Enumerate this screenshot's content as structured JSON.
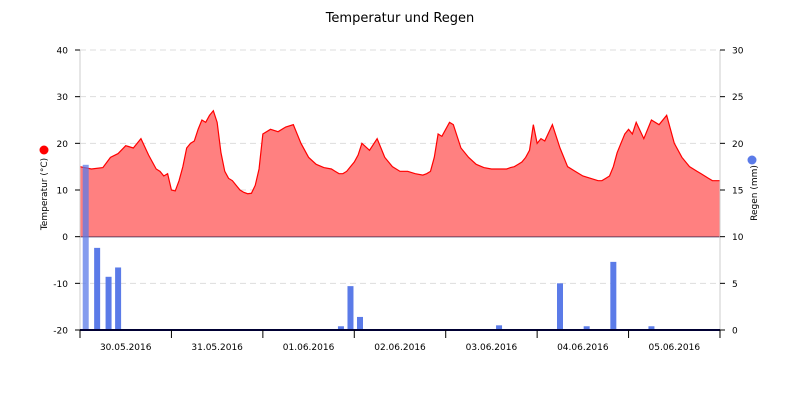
{
  "chart_data": {
    "type": "line+bar",
    "title": "Temperatur und Regen",
    "colors": {
      "temperature": "#ff0000",
      "temperature_fill": "#ff8080",
      "rain": "#5b7be8",
      "axis": "#000033",
      "grid": "#dddddd"
    },
    "x_labels": [
      "30.05.2016",
      "31.05.2016",
      "01.06.2016",
      "02.06.2016",
      "03.06.2016",
      "04.06.2016",
      "05.06.2016"
    ],
    "x_range_hours": [
      0,
      168
    ],
    "y_left": {
      "label": "Temperatur (°C)",
      "range": [
        -20,
        40
      ],
      "ticks": [
        40,
        30,
        20,
        10,
        0,
        -10,
        -20
      ]
    },
    "y_right": {
      "label": "Regen (mm)",
      "range": [
        0,
        30
      ],
      "ticks": [
        30,
        25,
        20,
        15,
        10,
        5,
        0
      ]
    },
    "series": [
      {
        "name": "Temperatur",
        "axis": "left",
        "kind": "area",
        "x": [
          0,
          3,
          6,
          8,
          10,
          12,
          14,
          16,
          18,
          19,
          20,
          21,
          22,
          23,
          24,
          25,
          26,
          27,
          28,
          29,
          30,
          31,
          32,
          33,
          34,
          35,
          36,
          37,
          38,
          39,
          40,
          41,
          42,
          43,
          44,
          45,
          46,
          47,
          48,
          50,
          52,
          54,
          56,
          58,
          60,
          62,
          64,
          66,
          67,
          68,
          69,
          70,
          71,
          72,
          73,
          74,
          76,
          78,
          80,
          82,
          84,
          86,
          88,
          90,
          91,
          92,
          93,
          94,
          95,
          96,
          97,
          98,
          100,
          102,
          104,
          106,
          108,
          110,
          112,
          113,
          114,
          115,
          116,
          117,
          118,
          119,
          120,
          121,
          122,
          124,
          126,
          128,
          130,
          132,
          134,
          136,
          137,
          138,
          139,
          140,
          141,
          142,
          143,
          144,
          145,
          146,
          148,
          150,
          152,
          154,
          156,
          158,
          160,
          161,
          162,
          163,
          164,
          165,
          166,
          168
        ],
        "values": [
          15,
          14.5,
          14.8,
          17,
          17.8,
          19.5,
          19,
          21,
          17.5,
          16,
          14.5,
          14,
          13,
          13.5,
          10,
          9.8,
          12,
          15,
          19,
          20,
          20.5,
          23,
          25,
          24.5,
          26,
          27,
          24.5,
          18,
          14,
          12.5,
          12,
          11,
          10,
          9.5,
          9.2,
          9.3,
          11,
          14.5,
          22,
          23,
          22.5,
          23.5,
          24,
          20,
          17,
          15.5,
          14.8,
          14.5,
          14,
          13.5,
          13.5,
          14,
          15,
          16,
          17.5,
          20,
          18.5,
          21,
          17,
          15,
          14,
          14,
          13.5,
          13.2,
          13.5,
          14,
          17,
          22,
          21.5,
          23,
          24.5,
          24,
          19,
          17,
          15.5,
          14.8,
          14.5,
          14.5,
          14.5,
          14.8,
          15,
          15.5,
          16,
          17,
          18.5,
          24,
          20,
          21,
          20.5,
          24,
          19,
          15,
          14,
          13,
          12.5,
          12,
          12,
          12.5,
          13,
          15,
          18,
          20,
          22,
          23,
          22,
          24.5,
          21,
          25,
          24,
          26,
          20,
          17,
          15,
          14.5,
          14,
          13.5,
          13,
          12.5,
          12,
          12
        ]
      },
      {
        "name": "Regen",
        "axis": "right",
        "kind": "bar",
        "x": [
          1.5,
          4.5,
          7.5,
          10,
          68.5,
          71,
          73.5,
          110,
          126,
          133,
          140,
          150
        ],
        "values": [
          17.7,
          8.8,
          5.7,
          6.7,
          0.4,
          4.7,
          1.4,
          0.5,
          5.0,
          0.4,
          7.3,
          0.4
        ]
      }
    ]
  }
}
